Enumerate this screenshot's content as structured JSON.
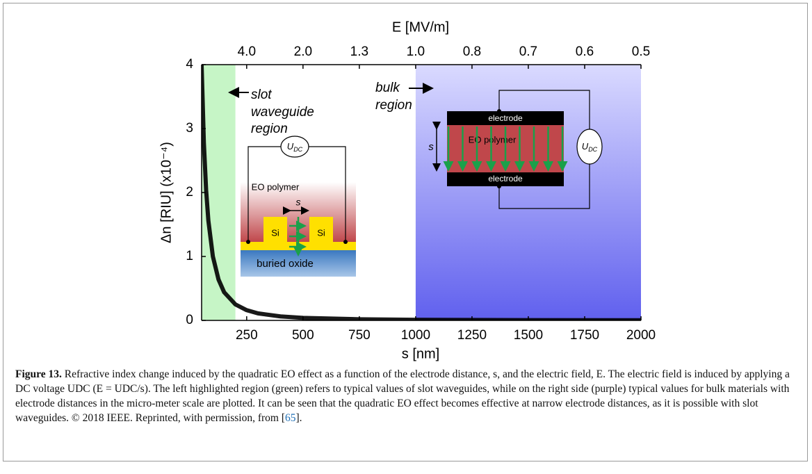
{
  "chart_data": {
    "type": "line",
    "x_label": "s [nm]",
    "y_label": "Δn [RIU] (x10⁻⁴)",
    "x2_label": "E [MV/m]",
    "xlim": [
      50,
      2000
    ],
    "xticks": [
      250,
      500,
      750,
      1000,
      1250,
      1500,
      1750,
      2000
    ],
    "ylim": [
      0,
      4
    ],
    "yticks": [
      0,
      1,
      2,
      3,
      4
    ],
    "x2ticks": [
      {
        "value": 4,
        "label": "4.0"
      },
      {
        "value": 2,
        "label": "2.0"
      },
      {
        "value": 1.3333,
        "label": "1.3"
      },
      {
        "value": 1,
        "label": "1.0"
      },
      {
        "value": 0.8,
        "label": "0.8"
      },
      {
        "value": 0.6667,
        "label": "0.7"
      },
      {
        "value": 0.5714,
        "label": "0.6"
      },
      {
        "value": 0.5,
        "label": "0.5"
      }
    ],
    "series": [
      {
        "color": "#000000",
        "x": [
          50,
          60,
          70,
          80,
          100,
          125,
          150,
          200,
          250,
          300,
          400,
          500,
          750,
          1000,
          1500,
          2000
        ],
        "values": [
          4,
          2.78,
          2.04,
          1.56,
          1.0,
          0.64,
          0.44,
          0.25,
          0.16,
          0.11,
          0.0625,
          0.04,
          0.018,
          0.01,
          0.0044,
          0.0025
        ]
      }
    ],
    "regions": [
      {
        "xlim": [
          50,
          200
        ],
        "colors": [
          "#c6f5c6",
          "#c6f5c6"
        ]
      },
      {
        "xlim": [
          1000,
          2000
        ],
        "colors": [
          "#dadaff",
          "#6060ee"
        ]
      }
    ],
    "slot_label": [
      "slot",
      "waveguide",
      "region"
    ],
    "bulk_label": [
      "bulk",
      "region"
    ],
    "slot_inset": {
      "polymer": "EO polymer",
      "si": [
        "Si",
        "Si"
      ],
      "oxide": "buried oxide",
      "gap": "s",
      "source": [
        "U",
        "DC"
      ]
    },
    "bulk_inset": {
      "top": "electrode",
      "polymer": "EO polymer",
      "bottom": "electrode",
      "gap": "s",
      "source": [
        "U",
        "DC"
      ]
    }
  },
  "caption": {
    "label": "Figure 13.",
    "text": "Refractive index change induced by the quadratic EO effect as a function of the electrode distance, s, and the electric field, E. The electric field is induced by applying a DC voltage UDC (E = UDC/s). The left highlighted region (green) refers to typical values of slot waveguides, while on the right side (purple) typical values for bulk materials with electrode distances in the micro-meter scale are plotted. It can be seen that the quadratic EO effect becomes effective at narrow electrode distances, as it is possible with slot waveguides. © 2018 IEEE. Reprinted, with permission, from [",
    "ref": "65",
    "end": "]."
  }
}
